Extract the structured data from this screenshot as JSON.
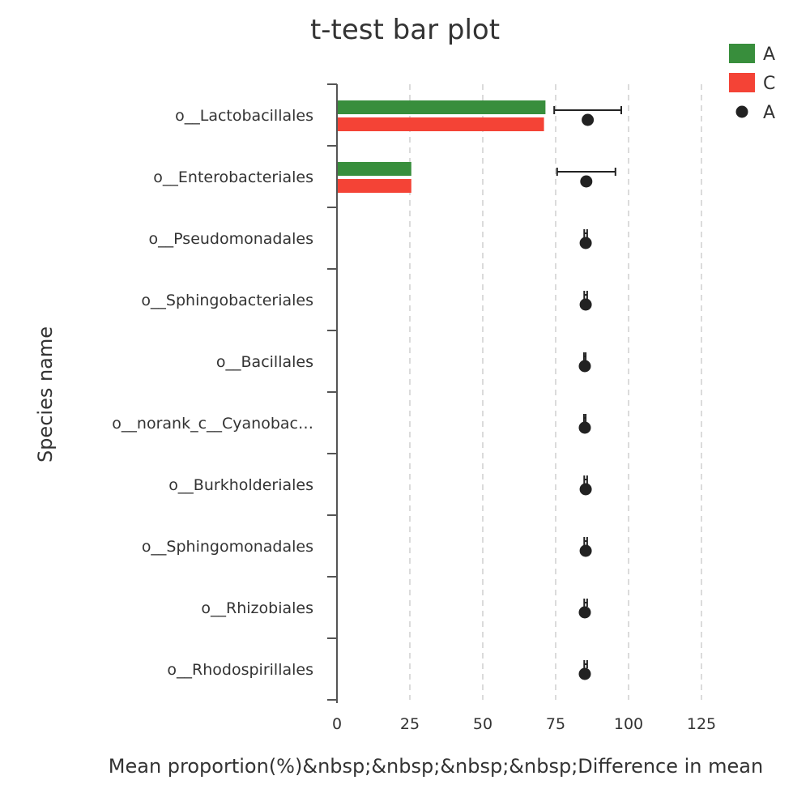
{
  "chart_data": {
    "type": "bar",
    "title": "t-test bar plot",
    "xlabel": "Mean proportion(%)&nbsp;&nbsp;&nbsp;&nbsp;Difference in mean",
    "ylabel": "Species name",
    "categories": [
      "o__Lactobacillales",
      "o__Enterobacteriales",
      "o__Pseudomonadales",
      "o__Sphingobacteriales",
      "o__Bacillales",
      "o__norank_c__Cyanobac…",
      "o__Burkholderiales",
      "o__Sphingomonadales",
      "o__Rhizobiales",
      "o__Rhodospirillales"
    ],
    "series": [
      {
        "name": "A",
        "color": "#388e3c",
        "values": [
          71.5,
          25.5,
          0.1,
          0.05,
          0.05,
          0.05,
          0.05,
          0.05,
          0.05,
          0.05
        ]
      },
      {
        "name": "C",
        "color": "#f44336",
        "values": [
          71.0,
          25.5,
          0.1,
          0.05,
          0.05,
          0.05,
          0.05,
          0.05,
          0.05,
          0.05
        ]
      }
    ],
    "difference": {
      "name": "A",
      "color": "#222222",
      "values": [
        86.0,
        85.5,
        85.3,
        85.3,
        85.0,
        85.0,
        85.3,
        85.3,
        85.0,
        85.0
      ],
      "ci_lower": [
        74.5,
        75.5,
        84.8,
        84.8,
        84.7,
        84.7,
        84.8,
        84.8,
        84.8,
        84.8
      ],
      "ci_upper": [
        97.5,
        95.5,
        85.8,
        85.8,
        85.3,
        85.3,
        85.8,
        85.8,
        85.8,
        85.8
      ]
    },
    "xticks": [
      0,
      25,
      50,
      75,
      100,
      125
    ],
    "xlim": [
      0,
      125
    ],
    "grid": true,
    "legend_position": "top-right"
  }
}
